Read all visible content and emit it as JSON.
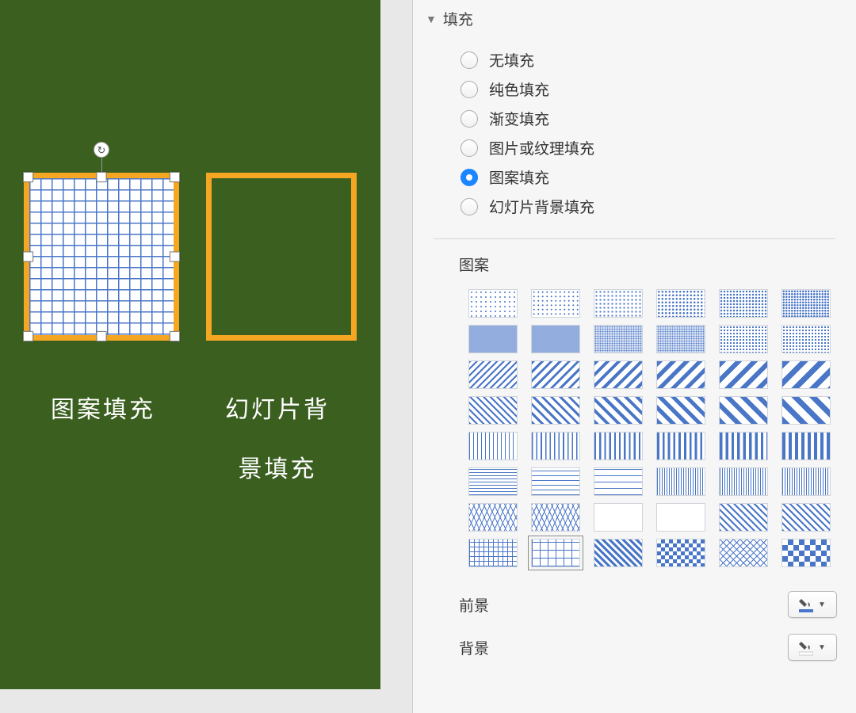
{
  "canvas": {
    "slide_bg": "#3a5f1f",
    "shape_border": "#f5a623",
    "pattern_fg": "#4a76c7",
    "pattern_bg": "#ffffff",
    "caption1": "图案填充",
    "caption2": "幻灯片背景填充"
  },
  "panel": {
    "section_title": "填充",
    "fill_options": [
      {
        "label": "无填充",
        "checked": false
      },
      {
        "label": "纯色填充",
        "checked": false
      },
      {
        "label": "渐变填充",
        "checked": false
      },
      {
        "label": "图片或纹理填充",
        "checked": false
      },
      {
        "label": "图案填充",
        "checked": true
      },
      {
        "label": "幻灯片背景填充",
        "checked": false
      }
    ],
    "pattern_label": "图案",
    "pattern_grid": {
      "rows": 8,
      "cols": 6,
      "selected_index": 43,
      "base_color": "#4a76c7",
      "bg_color": "#ffffff"
    },
    "foreground_label": "前景",
    "background_label": "背景",
    "foreground_color": "#4a76c7",
    "background_color_value": "#ffffff"
  }
}
